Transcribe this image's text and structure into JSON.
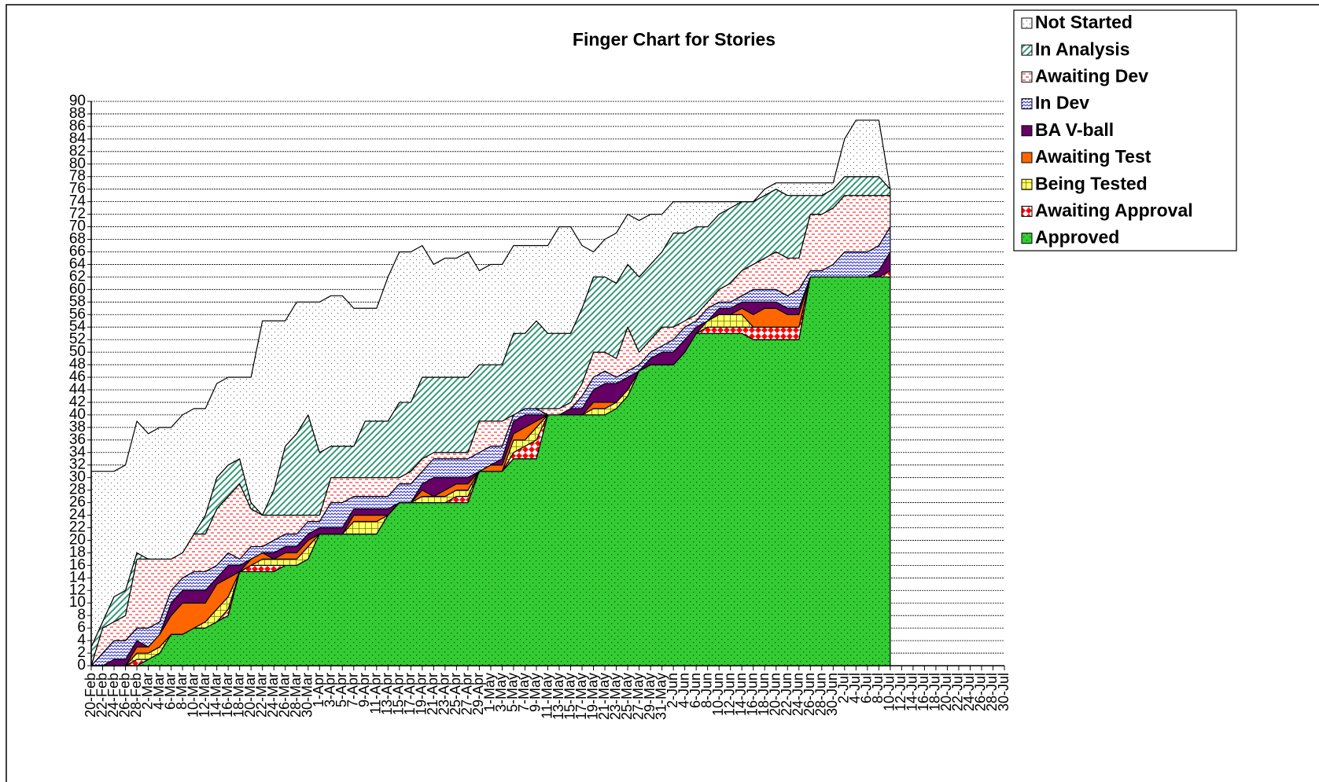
{
  "chart_data": {
    "type": "stacked_area",
    "title": "Finger Chart for Stories",
    "categories": [
      "20-Feb",
      "22-Feb",
      "24-Feb",
      "26-Feb",
      "28-Feb",
      "2-Mar",
      "4-Mar",
      "6-Mar",
      "8-Mar",
      "10-Mar",
      "12-Mar",
      "14-Mar",
      "16-Mar",
      "18-Mar",
      "20-Mar",
      "22-Mar",
      "24-Mar",
      "26-Mar",
      "28-Mar",
      "30-Mar",
      "1-Apr",
      "3-Apr",
      "5-Apr",
      "7-Apr",
      "9-Apr",
      "11-Apr",
      "13-Apr",
      "15-Apr",
      "17-Apr",
      "19-Apr",
      "21-Apr",
      "23-Apr",
      "25-Apr",
      "27-Apr",
      "29-Apr",
      "1-May",
      "3-May",
      "5-May",
      "7-May",
      "9-May",
      "11-May",
      "13-May",
      "15-May",
      "17-May",
      "19-May",
      "21-May",
      "23-May",
      "25-May",
      "27-May",
      "29-May",
      "31-May",
      "2-Jun",
      "4-Jun",
      "6-Jun",
      "8-Jun",
      "10-Jun",
      "12-Jun",
      "14-Jun",
      "16-Jun",
      "18-Jun",
      "20-Jun",
      "22-Jun",
      "24-Jun",
      "26-Jun",
      "28-Jun",
      "30-Jun",
      "2-Jul",
      "4-Jul",
      "6-Jul",
      "8-Jul",
      "10-Jul",
      "12-Jul",
      "14-Jul",
      "16-Jul",
      "18-Jul",
      "20-Jul",
      "22-Jul",
      "24-Jul",
      "26-Jul",
      "28-Jul",
      "30-Jul"
    ],
    "series": [
      {
        "name": "Approved",
        "color": "#33cc33",
        "values": [
          0,
          0,
          0,
          0,
          0,
          1,
          2,
          5,
          5,
          6,
          6,
          7,
          8,
          15,
          15,
          15,
          15,
          16,
          16,
          17,
          21,
          21,
          21,
          21,
          21,
          21,
          24,
          26,
          26,
          26,
          26,
          26,
          26,
          26,
          31,
          31,
          31,
          33,
          33,
          33,
          40,
          40,
          40,
          40,
          40,
          40,
          41,
          43,
          47,
          48,
          48,
          48,
          50,
          53,
          53,
          53,
          53,
          53,
          52,
          52,
          52,
          52,
          52,
          62,
          62,
          62,
          62,
          62,
          62,
          62,
          62,
          null,
          null,
          null,
          null,
          null,
          null,
          null,
          null,
          null,
          null
        ]
      },
      {
        "name": "Awaiting Approval",
        "color": "#ff0000",
        "values": [
          0,
          0,
          0,
          0,
          1,
          0,
          0,
          0,
          0,
          0,
          0,
          0,
          1,
          0,
          1,
          1,
          1,
          0,
          0,
          0,
          0,
          0,
          0,
          0,
          0,
          0,
          0,
          0,
          0,
          0,
          0,
          0,
          1,
          1,
          0,
          0,
          0,
          1,
          2,
          3,
          0,
          0,
          0,
          0,
          0,
          0,
          0,
          0,
          0,
          0,
          0,
          0,
          0,
          0,
          1,
          1,
          1,
          1,
          2,
          2,
          2,
          2,
          2,
          0,
          0,
          0,
          0,
          0,
          0,
          0,
          1,
          null,
          null,
          null,
          null,
          null,
          null,
          null,
          null,
          null,
          null
        ]
      },
      {
        "name": "Being Tested",
        "color": "#ffff66",
        "values": [
          0,
          0,
          0,
          0,
          1,
          1,
          1,
          0,
          0,
          0,
          1,
          2,
          2,
          0,
          0,
          1,
          1,
          1,
          1,
          2,
          0,
          0,
          0,
          2,
          2,
          2,
          0,
          0,
          0,
          1,
          1,
          1,
          1,
          1,
          0,
          0,
          0,
          2,
          1,
          2,
          0,
          0,
          0,
          0,
          1,
          1,
          1,
          1,
          0,
          0,
          0,
          0,
          0,
          0,
          1,
          2,
          2,
          2,
          0,
          0,
          0,
          0,
          0,
          0,
          0,
          0,
          0,
          0,
          0,
          0,
          0,
          null,
          null,
          null,
          null,
          null,
          null,
          null,
          null,
          null,
          null
        ]
      },
      {
        "name": "Awaiting Test",
        "color": "#ff6600",
        "values": [
          0,
          0,
          0,
          0,
          1,
          1,
          2,
          3,
          5,
          4,
          3,
          4,
          3,
          0,
          1,
          1,
          0,
          1,
          1,
          1,
          0,
          0,
          0,
          1,
          1,
          1,
          0,
          0,
          0,
          1,
          0,
          1,
          1,
          1,
          0,
          1,
          1,
          1,
          2,
          1,
          0,
          0,
          0,
          0,
          1,
          1,
          0,
          0,
          0,
          0,
          0,
          0,
          0,
          0,
          0,
          0,
          0,
          1,
          2,
          3,
          3,
          2,
          2,
          0,
          0,
          0,
          0,
          0,
          0,
          0,
          0,
          null,
          null,
          null,
          null,
          null,
          null,
          null,
          null,
          null,
          null
        ]
      },
      {
        "name": "BA V-ball",
        "color": "#660066",
        "values": [
          0,
          0,
          1,
          1,
          1,
          0,
          0,
          2,
          2,
          2,
          2,
          1,
          2,
          1,
          0,
          0,
          1,
          1,
          1,
          1,
          1,
          1,
          1,
          1,
          1,
          1,
          1,
          0,
          0,
          1,
          3,
          2,
          1,
          1,
          0,
          0,
          1,
          2,
          2,
          1,
          0,
          0,
          1,
          1,
          2,
          3,
          3,
          2,
          0,
          1,
          2,
          2,
          2,
          1,
          0,
          1,
          1,
          1,
          2,
          1,
          1,
          1,
          1,
          0,
          0,
          0,
          0,
          0,
          0,
          1,
          3,
          null,
          null,
          null,
          null,
          null,
          null,
          null,
          null,
          null,
          null
        ]
      },
      {
        "name": "In Dev",
        "color": "#3333cc",
        "values": [
          0,
          2,
          3,
          3,
          2,
          3,
          2,
          2,
          2,
          3,
          3,
          2,
          2,
          1,
          2,
          1,
          2,
          2,
          2,
          2,
          1,
          4,
          4,
          2,
          2,
          2,
          2,
          3,
          3,
          2,
          3,
          3,
          3,
          3,
          3,
          3,
          2,
          1,
          1,
          1,
          0,
          0,
          0,
          2,
          2,
          2,
          1,
          1,
          1,
          1,
          1,
          2,
          2,
          1,
          2,
          1,
          1,
          1,
          2,
          2,
          2,
          2,
          3,
          1,
          1,
          2,
          4,
          4,
          4,
          4,
          4,
          null,
          null,
          null,
          null,
          null,
          null,
          null,
          null,
          null,
          null
        ]
      },
      {
        "name": "Awaiting Dev",
        "color": "#ff3333",
        "values": [
          0,
          4,
          3,
          4,
          11,
          11,
          10,
          5,
          4,
          6,
          6,
          9,
          9,
          12,
          6,
          5,
          4,
          3,
          3,
          1,
          1,
          4,
          4,
          3,
          3,
          3,
          3,
          1,
          2,
          2,
          1,
          1,
          1,
          1,
          5,
          4,
          4,
          0,
          0,
          0,
          1,
          1,
          1,
          2,
          4,
          3,
          3,
          7,
          2,
          2,
          3,
          2,
          1,
          1,
          1,
          2,
          3,
          4,
          4,
          5,
          6,
          6,
          5,
          9,
          9,
          9,
          9,
          9,
          9,
          8,
          5,
          null,
          null,
          null,
          null,
          null,
          null,
          null,
          null,
          null,
          null
        ]
      },
      {
        "name": "In Analysis",
        "color": "#339977",
        "values": [
          3,
          1,
          4,
          4,
          1,
          0,
          0,
          0,
          0,
          0,
          3,
          5,
          5,
          4,
          1,
          0,
          4,
          11,
          13,
          16,
          10,
          5,
          5,
          5,
          9,
          9,
          9,
          12,
          11,
          13,
          12,
          12,
          12,
          12,
          9,
          9,
          9,
          13,
          12,
          14,
          12,
          12,
          11,
          12,
          12,
          12,
          12,
          10,
          12,
          12,
          12,
          15,
          14,
          14,
          12,
          12,
          12,
          11,
          10,
          10,
          10,
          10,
          10,
          3,
          3,
          3,
          3,
          3,
          3,
          3,
          1,
          null,
          null,
          null,
          null,
          null,
          null,
          null,
          null,
          null,
          null
        ]
      },
      {
        "name": "Not Started",
        "color": "#555555",
        "values": [
          28,
          24,
          20,
          20,
          21,
          20,
          21,
          21,
          22,
          20,
          17,
          15,
          14,
          13,
          20,
          31,
          27,
          20,
          21,
          18,
          24,
          24,
          24,
          22,
          18,
          18,
          23,
          24,
          24,
          21,
          18,
          19,
          19,
          20,
          15,
          16,
          16,
          14,
          14,
          12,
          14,
          17,
          17,
          10,
          4,
          6,
          8,
          8,
          9,
          8,
          6,
          5,
          5,
          4,
          4,
          2,
          1,
          0,
          0,
          1,
          1,
          2,
          2,
          2,
          2,
          1,
          6,
          9,
          9,
          9,
          0,
          null,
          null,
          null,
          null,
          null,
          null,
          null,
          null,
          null,
          null
        ]
      }
    ],
    "ylim": [
      0,
      90
    ],
    "yticks": [
      0,
      2,
      4,
      6,
      8,
      10,
      12,
      14,
      16,
      18,
      20,
      22,
      24,
      26,
      28,
      30,
      32,
      34,
      36,
      38,
      40,
      42,
      44,
      46,
      48,
      50,
      52,
      54,
      56,
      58,
      60,
      62,
      64,
      66,
      68,
      70,
      72,
      74,
      76,
      78,
      80,
      82,
      84,
      86,
      88,
      90
    ],
    "grid": true,
    "legend": "upper right"
  }
}
